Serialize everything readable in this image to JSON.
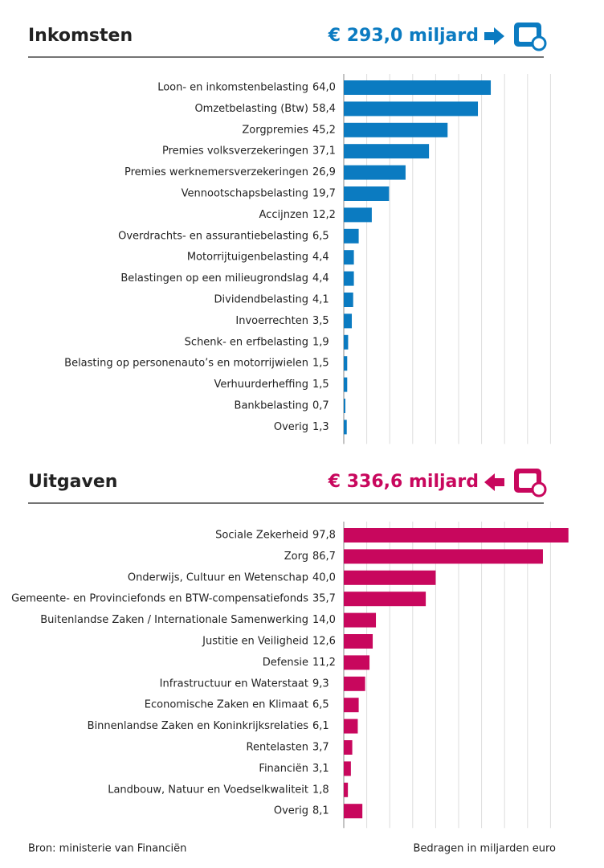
{
  "chart_data": [
    {
      "type": "bar",
      "orientation": "horizontal",
      "title": "Inkomsten",
      "subtitle": "€ 293,0 miljard",
      "color": "#0b7bc1",
      "categories": [
        "Loon- en inkomstenbelasting",
        "Omzetbelasting (Btw)",
        "Zorgpremies",
        "Premies volksverzekeringen",
        "Premies werknemersverzekeringen",
        "Vennootschapsbelasting",
        "Accijnzen",
        "Overdrachts- en assurantiebelasting",
        "Motorrijtuigenbelasting",
        "Belastingen op een milieugrondslag",
        "Dividendbelasting",
        "Invoerrechten",
        "Schenk- en erfbelasting",
        "Belasting op personenauto’s en motorrijwielen",
        "Verhuurderheffing",
        "Bankbelasting",
        "Overig"
      ],
      "values": [
        64.0,
        58.4,
        45.2,
        37.1,
        26.9,
        19.7,
        12.2,
        6.5,
        4.4,
        4.4,
        4.1,
        3.5,
        1.9,
        1.5,
        1.5,
        0.7,
        1.3
      ],
      "value_labels": [
        "64,0",
        "58,4",
        "45,2",
        "37,1",
        "26,9",
        "19,7",
        "12,2",
        "6,5",
        "4,4",
        "4,4",
        "4,1",
        "3,5",
        "1,9",
        "1,5",
        "1,5",
        "0,7",
        "1,3"
      ],
      "xlim": [
        0,
        100
      ],
      "xticks": [
        0,
        10,
        20,
        30,
        40,
        50,
        60,
        70,
        80,
        90
      ],
      "grid": true
    },
    {
      "type": "bar",
      "orientation": "horizontal",
      "title": "Uitgaven",
      "subtitle": "€ 336,6 miljard",
      "color": "#c8075d",
      "categories": [
        "Sociale Zekerheid",
        "Zorg",
        "Onderwijs, Cultuur en Wetenschap",
        "Gemeente- en Provinciefonds en BTW-compensatiefonds",
        "Buitenlandse Zaken / Internationale Samenwerking",
        "Justitie en Veiligheid",
        "Defensie",
        "Infrastructuur en Waterstaat",
        "Economische Zaken en Klimaat",
        "Binnenlandse Zaken en Koninkrijksrelaties",
        "Rentelasten",
        "Financiën",
        "Landbouw, Natuur en Voedselkwaliteit",
        "Overig"
      ],
      "values": [
        97.8,
        86.7,
        40.0,
        35.7,
        14.0,
        12.6,
        11.2,
        9.3,
        6.5,
        6.1,
        3.7,
        3.1,
        1.8,
        8.1
      ],
      "value_labels": [
        "97,8",
        "86,7",
        "40,0",
        "35,7",
        "14,0",
        "12,6",
        "11,2",
        "9,3",
        "6,5",
        "6,1",
        "3,7",
        "3,1",
        "1,8",
        "8,1"
      ],
      "xlim": [
        0,
        100
      ],
      "xticks": [
        0,
        10,
        20,
        30,
        40,
        50,
        60,
        70,
        80,
        90
      ],
      "grid": true
    }
  ],
  "source": "Bron: ministerie van Financiën",
  "note": "Bedragen in miljarden euro"
}
